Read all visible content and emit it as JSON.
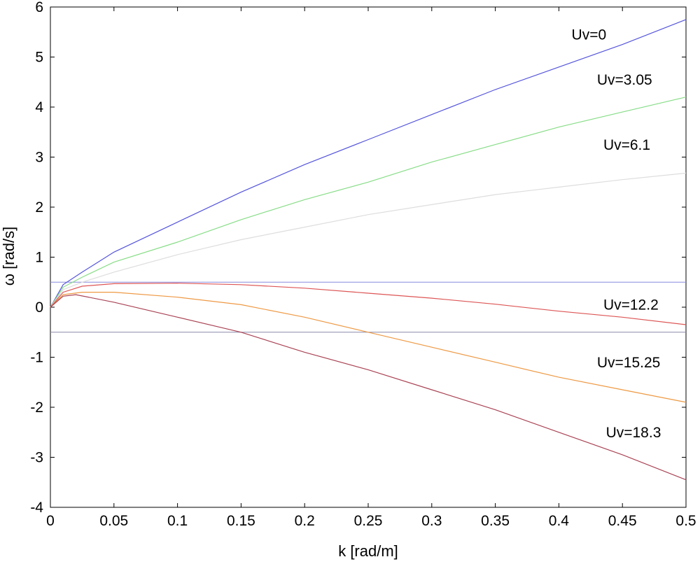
{
  "chart_data": {
    "type": "line",
    "title": "",
    "xlabel": "k [rad/m]",
    "ylabel": "ω [rad/s]",
    "xlim": [
      0,
      0.5
    ],
    "ylim": [
      -4,
      6
    ],
    "grid": false,
    "x_ticks": [
      0,
      0.05,
      0.1,
      0.15,
      0.2,
      0.25,
      0.3,
      0.35,
      0.4,
      0.45,
      0.5
    ],
    "x_tick_labels": [
      "0",
      "0.05",
      "0.1",
      "0.15",
      "0.2",
      "0.25",
      "0.3",
      "0.35",
      "0.4",
      "0.45",
      "0.5"
    ],
    "y_ticks": [
      6,
      5,
      4,
      3,
      2,
      1,
      0,
      -1,
      -2,
      -3,
      -4
    ],
    "y_tick_labels": [
      "6",
      "5",
      "4",
      "3",
      "2",
      "1",
      "0",
      "-1",
      "-2",
      "-3",
      "-4"
    ],
    "series": [
      {
        "name": "Uv=0",
        "color": "#5555dd",
        "x": [
          0,
          0.01,
          0.025,
          0.05,
          0.1,
          0.15,
          0.2,
          0.25,
          0.3,
          0.35,
          0.4,
          0.45,
          0.5
        ],
        "y": [
          0,
          0.45,
          0.7,
          1.1,
          1.7,
          2.3,
          2.85,
          3.35,
          3.85,
          4.35,
          4.8,
          5.25,
          5.75
        ]
      },
      {
        "name": "Uv=3.05",
        "color": "#88dd88",
        "x": [
          0,
          0.01,
          0.025,
          0.05,
          0.1,
          0.15,
          0.2,
          0.25,
          0.3,
          0.35,
          0.4,
          0.45,
          0.5
        ],
        "y": [
          0,
          0.4,
          0.6,
          0.9,
          1.3,
          1.75,
          2.15,
          2.5,
          2.9,
          3.25,
          3.6,
          3.9,
          4.2
        ]
      },
      {
        "name": "Uv=6.1",
        "color": "#dddddd",
        "x": [
          0,
          0.01,
          0.025,
          0.05,
          0.1,
          0.15,
          0.2,
          0.25,
          0.3,
          0.35,
          0.4,
          0.45,
          0.5
        ],
        "y": [
          0,
          0.35,
          0.5,
          0.7,
          1.05,
          1.35,
          1.6,
          1.85,
          2.05,
          2.25,
          2.4,
          2.55,
          2.68
        ]
      },
      {
        "name": "Uv=12.2",
        "color": "#dd5555",
        "x": [
          0,
          0.01,
          0.025,
          0.05,
          0.1,
          0.15,
          0.2,
          0.25,
          0.3,
          0.35,
          0.4,
          0.45,
          0.5
        ],
        "y": [
          0,
          0.3,
          0.42,
          0.47,
          0.48,
          0.45,
          0.38,
          0.28,
          0.18,
          0.06,
          -0.08,
          -0.2,
          -0.35
        ]
      },
      {
        "name": "Uv=15.25",
        "color": "#ee9944",
        "x": [
          0,
          0.01,
          0.025,
          0.05,
          0.1,
          0.15,
          0.2,
          0.25,
          0.3,
          0.35,
          0.4,
          0.45,
          0.5
        ],
        "y": [
          0,
          0.25,
          0.3,
          0.3,
          0.2,
          0.05,
          -0.2,
          -0.5,
          -0.8,
          -1.1,
          -1.4,
          -1.65,
          -1.9
        ]
      },
      {
        "name": "Uv=18.3",
        "color": "#aa4455",
        "x": [
          0,
          0.01,
          0.02,
          0.05,
          0.1,
          0.15,
          0.2,
          0.25,
          0.3,
          0.35,
          0.4,
          0.45,
          0.5
        ],
        "y": [
          0,
          0.22,
          0.25,
          0.1,
          -0.2,
          -0.5,
          -0.9,
          -1.25,
          -1.65,
          -2.05,
          -2.5,
          -2.95,
          -3.45
        ]
      }
    ],
    "reference_lines": [
      {
        "axis": "y",
        "value": 0.5,
        "color": "#8888dd"
      },
      {
        "axis": "y",
        "value": -0.5,
        "color": "#8888aa"
      }
    ]
  }
}
